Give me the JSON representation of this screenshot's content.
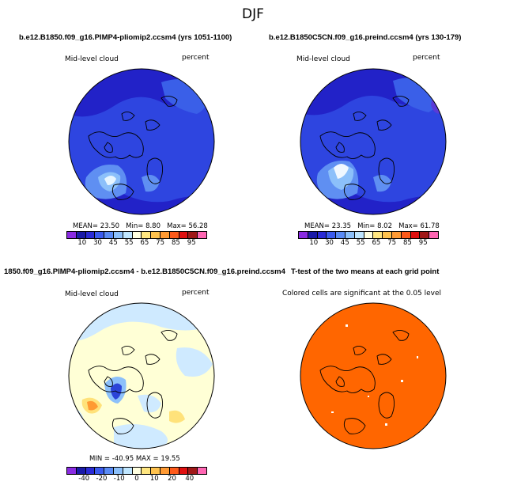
{
  "main_title": "DJF",
  "panels": [
    {
      "title": "b.e12.B1850.f09_g16.PIMP4-pliomip2.ccsm4 (yrs 1051-1100)",
      "variable": "Mid-level cloud",
      "units": "percent",
      "stats": {
        "mean": "MEAN= 23.50",
        "min": "Min= 8.80",
        "max": "Max= 56.28"
      },
      "colorbar": {
        "colors": [
          "#8a2be2",
          "#1a1aa8",
          "#2b2bd6",
          "#3b5bef",
          "#5a8bf5",
          "#8cc0fa",
          "#bfe6ff",
          "#ffffe0",
          "#ffe680",
          "#ffc24d",
          "#ff9a33",
          "#ff5a1a",
          "#e01010",
          "#a01818",
          "#ff66b3"
        ],
        "ticks": [
          "10",
          "30",
          "45",
          "55",
          "65",
          "75",
          "85",
          "95"
        ]
      }
    },
    {
      "title": "b.e12.B1850C5CN.f09_g16.preind.ccsm4 (yrs 130-179)",
      "variable": "Mid-level cloud",
      "units": "percent",
      "stats": {
        "mean": "MEAN= 23.35",
        "min": "Min= 8.02",
        "max": "Max= 61.78"
      },
      "colorbar": {
        "colors": [
          "#8a2be2",
          "#1a1aa8",
          "#2b2bd6",
          "#3b5bef",
          "#5a8bf5",
          "#8cc0fa",
          "#bfe6ff",
          "#ffffe0",
          "#ffe680",
          "#ffc24d",
          "#ff9a33",
          "#ff5a1a",
          "#e01010",
          "#a01818",
          "#ff66b3"
        ],
        "ticks": [
          "10",
          "30",
          "45",
          "55",
          "65",
          "75",
          "85",
          "95"
        ]
      }
    },
    {
      "title": "1850.f09_g16.PIMP4-pliomip2.ccsm4 - b.e12.B1850C5CN.f09_g16.preind.ccsm4",
      "variable": "Mid-level cloud",
      "units": "percent",
      "stats": {
        "range": "MIN = -40.95  MAX = 19.55"
      },
      "colorbar": {
        "colors": [
          "#8a2be2",
          "#1a1aa8",
          "#2b2bd6",
          "#3b5bef",
          "#5a8bf5",
          "#8cc0fa",
          "#bfe6ff",
          "#ffffe0",
          "#ffe680",
          "#ffc24d",
          "#ff9a33",
          "#ff5a1a",
          "#e01010",
          "#a01818",
          "#ff66b3"
        ],
        "ticks": [
          "-40",
          "-20",
          "-10",
          "0",
          "10",
          "20",
          "40"
        ]
      }
    },
    {
      "title": "T-test of the two means at each grid point",
      "note": "Colored cells are significant at the 0.05 level",
      "fill_color": "#ff6600"
    }
  ],
  "colors": {
    "ocean_deep": "#2222c8",
    "ocean_mid": "#2e45e0",
    "ocean_light": "#5f8ff2",
    "ocean_pale": "#b3dcff",
    "diff_bg": "#ffffd6",
    "diff_pale_blue": "#cfeaff",
    "diff_yellow": "#ffe27a",
    "diff_orange": "#ff9a33",
    "diff_blue": "#2b44d8",
    "ttest_orange": "#ff6600",
    "outline": "#000000"
  }
}
